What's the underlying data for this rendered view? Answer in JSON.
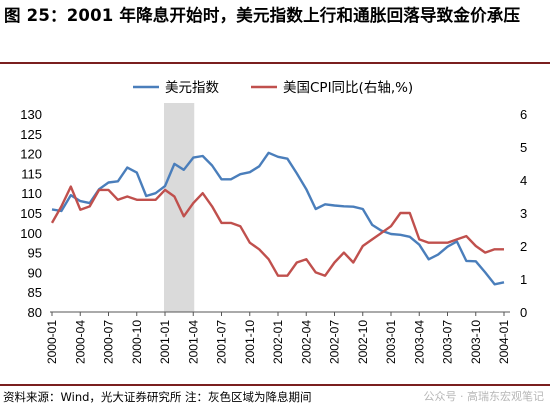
{
  "figure_title": "图 25：2001 年降息开始时，美元指数上行和通胀回落导致金价承压",
  "source_note": "资料来源：Wind，光大证券研究所 注：灰色区域为降息期间",
  "watermark": "公众号 · 高瑞东宏观笔记",
  "colors": {
    "usd": "#4a7ebb",
    "cpi": "#c0504d",
    "shade": "#d4d4d4",
    "rule": "#7a1f1f"
  },
  "chart_data": {
    "type": "line",
    "title": "",
    "legend_position": "top",
    "x": [
      "2000-01",
      "2000-02",
      "2000-03",
      "2000-04",
      "2000-05",
      "2000-06",
      "2000-07",
      "2000-08",
      "2000-09",
      "2000-10",
      "2000-11",
      "2000-12",
      "2001-01",
      "2001-02",
      "2001-03",
      "2001-04",
      "2001-05",
      "2001-06",
      "2001-07",
      "2001-08",
      "2001-09",
      "2001-10",
      "2001-11",
      "2001-12",
      "2002-01",
      "2002-02",
      "2002-03",
      "2002-04",
      "2002-05",
      "2002-06",
      "2002-07",
      "2002-08",
      "2002-09",
      "2002-10",
      "2002-11",
      "2002-12",
      "2003-01",
      "2003-02",
      "2003-03",
      "2003-04",
      "2003-05",
      "2003-06",
      "2003-07",
      "2003-08",
      "2003-09",
      "2003-10",
      "2003-11",
      "2003-12",
      "2004-01"
    ],
    "x_tick_labels": [
      "2000-01",
      "2000-04",
      "2000-07",
      "2000-10",
      "2001-01",
      "2001-04",
      "2001-07",
      "2001-10",
      "2002-01",
      "2002-04",
      "2002-07",
      "2002-10",
      "2003-01",
      "2003-04",
      "2003-07",
      "2003-10",
      "2004-01"
    ],
    "shaded_region": {
      "from": "2001-01",
      "to": "2001-04"
    },
    "y_left": {
      "min": 80,
      "max": 130,
      "step": 5
    },
    "y_right": {
      "min": 0,
      "max": 6,
      "step": 1
    },
    "series": [
      {
        "name": "美元指数",
        "axis": "left",
        "color": "#4a7ebb",
        "values": [
          105.9,
          105.5,
          109.5,
          108.0,
          107.5,
          111.0,
          112.7,
          113.0,
          116.5,
          115.2,
          109.3,
          110.0,
          111.8,
          117.4,
          115.9,
          119.0,
          119.4,
          117.0,
          113.5,
          113.5,
          114.8,
          115.3,
          116.8,
          120.2,
          119.2,
          118.7,
          115.0,
          111.0,
          106.0,
          107.2,
          106.9,
          106.7,
          106.6,
          106.0,
          102.0,
          100.5,
          99.7,
          99.5,
          99.0,
          97.0,
          93.3,
          94.5,
          96.5,
          97.8,
          92.9,
          92.8,
          90.0,
          87.0,
          87.5
        ]
      },
      {
        "name": "美国CPI同比(右轴,%)",
        "axis": "right",
        "color": "#c0504d",
        "values": [
          2.7,
          3.2,
          3.8,
          3.1,
          3.2,
          3.7,
          3.7,
          3.4,
          3.5,
          3.4,
          3.4,
          3.4,
          3.7,
          3.5,
          2.9,
          3.3,
          3.6,
          3.2,
          2.7,
          2.7,
          2.6,
          2.1,
          1.9,
          1.6,
          1.1,
          1.1,
          1.5,
          1.6,
          1.2,
          1.1,
          1.5,
          1.8,
          1.5,
          2.0,
          2.2,
          2.4,
          2.6,
          3.0,
          3.0,
          2.2,
          2.1,
          2.1,
          2.1,
          2.2,
          2.3,
          2.0,
          1.8,
          1.9,
          1.9
        ]
      }
    ]
  }
}
